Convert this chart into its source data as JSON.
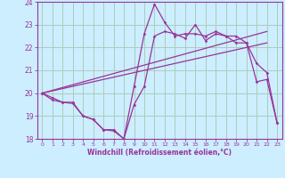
{
  "xlabel": "Windchill (Refroidissement éolien,°C)",
  "bg_color": "#cceeff",
  "grid_color": "#aaccbb",
  "line_color": "#993399",
  "xlim": [
    -0.5,
    23.5
  ],
  "ylim": [
    18,
    24
  ],
  "yticks": [
    18,
    19,
    20,
    21,
    22,
    23,
    24
  ],
  "xticks": [
    0,
    1,
    2,
    3,
    4,
    5,
    6,
    7,
    8,
    9,
    10,
    11,
    12,
    13,
    14,
    15,
    16,
    17,
    18,
    19,
    20,
    21,
    22,
    23
  ],
  "line1_x": [
    0,
    1,
    2,
    3,
    4,
    5,
    6,
    7,
    8,
    9,
    10,
    11,
    12,
    13,
    14,
    15,
    16,
    17,
    18,
    19,
    20,
    21,
    22,
    23
  ],
  "line1_y": [
    20.0,
    19.8,
    19.6,
    19.6,
    19.0,
    18.85,
    18.4,
    18.4,
    18.0,
    20.3,
    22.6,
    23.9,
    23.1,
    22.5,
    22.6,
    22.6,
    22.5,
    22.7,
    22.5,
    22.2,
    22.2,
    20.5,
    20.6,
    18.7
  ],
  "line2_x": [
    0,
    1,
    2,
    3,
    4,
    5,
    6,
    7,
    8,
    9,
    10,
    11,
    12,
    13,
    14,
    15,
    16,
    17,
    18,
    19,
    20,
    21,
    22,
    23
  ],
  "line2_y": [
    20.0,
    19.7,
    19.6,
    19.55,
    19.0,
    18.85,
    18.4,
    18.35,
    18.0,
    19.5,
    20.3,
    22.5,
    22.7,
    22.6,
    22.4,
    23.0,
    22.3,
    22.6,
    22.5,
    22.5,
    22.2,
    21.3,
    20.9,
    18.7
  ],
  "line3_x": [
    0,
    22
  ],
  "line3_y": [
    20.0,
    22.7
  ],
  "line4_x": [
    0,
    22
  ],
  "line4_y": [
    20.0,
    22.2
  ]
}
